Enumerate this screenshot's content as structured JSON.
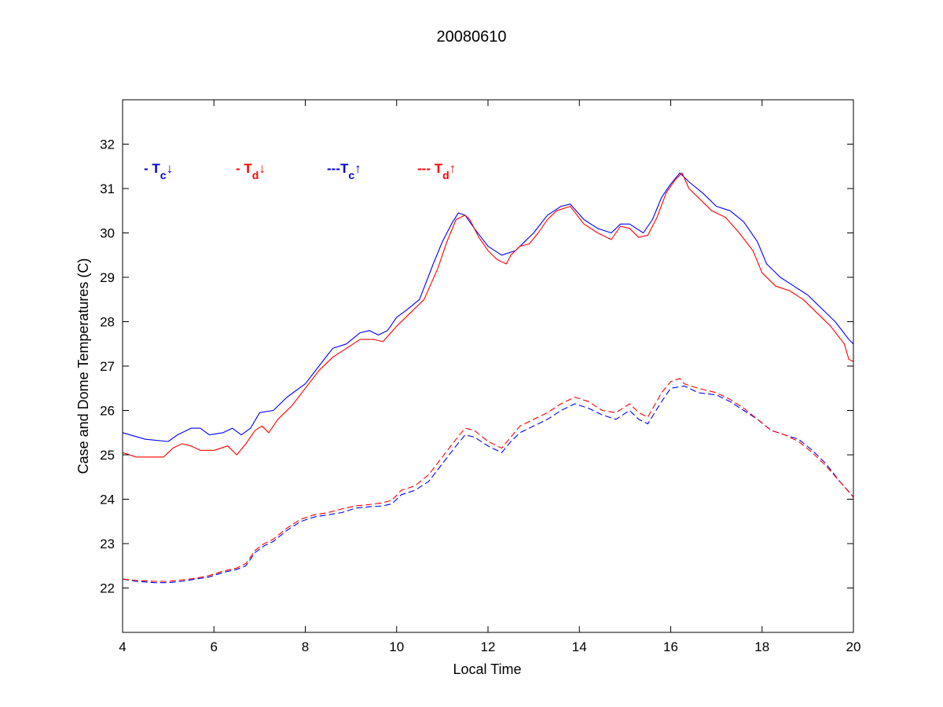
{
  "chart_data": {
    "type": "line",
    "title": "20080610",
    "xlabel": "Local Time",
    "ylabel": "Case and Dome Temperatures (C)",
    "xlim": [
      4,
      20
    ],
    "ylim": [
      21,
      33
    ],
    "xticks": [
      4,
      6,
      8,
      10,
      12,
      14,
      16,
      18,
      20
    ],
    "yticks": [
      22,
      23,
      24,
      25,
      26,
      27,
      28,
      29,
      30,
      31,
      32
    ],
    "grid": false,
    "legend_items": [
      {
        "dash": "- ",
        "sym": "T",
        "sub": "c",
        "arrow": "↓",
        "color": "#0000cc"
      },
      {
        "dash": "- ",
        "sym": "T",
        "sub": "d",
        "arrow": "↓",
        "color": "#ff0000"
      },
      {
        "dash": "---",
        "sym": "T",
        "sub": "c",
        "arrow": "↑",
        "color": "#0000cc"
      },
      {
        "dash": "--- ",
        "sym": "T",
        "sub": "d",
        "arrow": "↑",
        "color": "#ff0000"
      }
    ],
    "series": [
      {
        "style": "solid",
        "color": "#0000ff",
        "x": [
          4.0,
          4.5,
          5.0,
          5.2,
          5.5,
          5.7,
          5.9,
          6.2,
          6.4,
          6.6,
          6.8,
          7.0,
          7.3,
          7.6,
          8.0,
          8.3,
          8.6,
          8.9,
          9.2,
          9.4,
          9.6,
          9.8,
          10.0,
          10.2,
          10.5,
          10.8,
          11.0,
          11.2,
          11.35,
          11.5,
          11.7,
          12.0,
          12.3,
          12.6,
          12.8,
          13.0,
          13.3,
          13.6,
          13.8,
          14.1,
          14.4,
          14.7,
          14.9,
          15.1,
          15.4,
          15.6,
          15.8,
          16.0,
          16.2,
          16.4,
          16.7,
          17.0,
          17.3,
          17.6,
          17.9,
          18.1,
          18.4,
          18.7,
          19.0,
          19.3,
          19.6,
          19.9,
          20.0
        ],
        "y": [
          25.5,
          25.35,
          25.3,
          25.45,
          25.6,
          25.6,
          25.45,
          25.5,
          25.6,
          25.45,
          25.6,
          25.95,
          26.0,
          26.3,
          26.6,
          27.0,
          27.4,
          27.5,
          27.75,
          27.8,
          27.7,
          27.8,
          28.1,
          28.25,
          28.5,
          29.3,
          29.8,
          30.2,
          30.45,
          30.4,
          30.1,
          29.7,
          29.5,
          29.6,
          29.8,
          30.0,
          30.4,
          30.6,
          30.65,
          30.3,
          30.1,
          30.0,
          30.2,
          30.2,
          30.0,
          30.3,
          30.8,
          31.1,
          31.35,
          31.15,
          30.9,
          30.6,
          30.5,
          30.25,
          29.8,
          29.3,
          29.0,
          28.8,
          28.6,
          28.3,
          28.0,
          27.6,
          27.5
        ]
      },
      {
        "style": "solid",
        "color": "#ff0000",
        "x": [
          4.0,
          4.3,
          4.9,
          5.1,
          5.3,
          5.5,
          5.7,
          6.0,
          6.3,
          6.5,
          6.7,
          6.9,
          7.05,
          7.2,
          7.4,
          7.7,
          8.0,
          8.3,
          8.6,
          8.9,
          9.2,
          9.5,
          9.7,
          10.0,
          10.3,
          10.6,
          10.9,
          11.1,
          11.3,
          11.5,
          11.6,
          11.8,
          12.0,
          12.2,
          12.4,
          12.5,
          12.7,
          12.9,
          13.1,
          13.3,
          13.5,
          13.8,
          14.1,
          14.4,
          14.7,
          14.9,
          15.1,
          15.3,
          15.5,
          15.7,
          15.9,
          16.1,
          16.25,
          16.4,
          16.6,
          16.9,
          17.2,
          17.5,
          17.8,
          18.0,
          18.3,
          18.6,
          18.9,
          19.2,
          19.5,
          19.8,
          19.9,
          20.0
        ],
        "y": [
          25.05,
          24.95,
          24.95,
          25.15,
          25.25,
          25.2,
          25.1,
          25.1,
          25.2,
          25.0,
          25.25,
          25.55,
          25.65,
          25.5,
          25.8,
          26.1,
          26.5,
          26.9,
          27.2,
          27.4,
          27.6,
          27.6,
          27.55,
          27.9,
          28.2,
          28.5,
          29.2,
          29.8,
          30.3,
          30.4,
          30.3,
          29.9,
          29.6,
          29.4,
          29.3,
          29.5,
          29.7,
          29.75,
          30.0,
          30.3,
          30.5,
          30.6,
          30.2,
          30.0,
          29.85,
          30.15,
          30.1,
          29.9,
          29.95,
          30.35,
          30.9,
          31.2,
          31.35,
          31.0,
          30.8,
          30.5,
          30.35,
          30.0,
          29.6,
          29.1,
          28.8,
          28.7,
          28.5,
          28.2,
          27.9,
          27.5,
          27.15,
          27.1
        ]
      },
      {
        "style": "dashed",
        "color": "#0000ff",
        "x": [
          4.0,
          4.3,
          4.7,
          5.0,
          5.3,
          5.6,
          5.9,
          6.2,
          6.5,
          6.7,
          6.9,
          7.1,
          7.3,
          7.6,
          7.9,
          8.2,
          8.5,
          8.8,
          9.1,
          9.4,
          9.7,
          9.9,
          10.1,
          10.4,
          10.7,
          11.0,
          11.3,
          11.5,
          11.7,
          12.0,
          12.3,
          12.5,
          12.7,
          13.0,
          13.3,
          13.6,
          13.9,
          14.2,
          14.5,
          14.8,
          15.1,
          15.3,
          15.5,
          15.8,
          16.0,
          16.3,
          16.6,
          17.0,
          17.3,
          17.6,
          17.9,
          18.2,
          18.5,
          18.8,
          19.1,
          19.4,
          19.7,
          20.0
        ],
        "y": [
          22.2,
          22.15,
          22.12,
          22.12,
          22.15,
          22.2,
          22.25,
          22.35,
          22.42,
          22.5,
          22.8,
          22.95,
          23.05,
          23.3,
          23.5,
          23.6,
          23.65,
          23.7,
          23.8,
          23.83,
          23.85,
          23.9,
          24.1,
          24.2,
          24.4,
          24.8,
          25.2,
          25.45,
          25.4,
          25.2,
          25.05,
          25.3,
          25.5,
          25.65,
          25.8,
          26.0,
          26.15,
          26.05,
          25.9,
          25.8,
          26.0,
          25.8,
          25.7,
          26.2,
          26.5,
          26.55,
          26.4,
          26.35,
          26.2,
          26.0,
          25.8,
          25.55,
          25.45,
          25.35,
          25.1,
          24.8,
          24.4,
          24.05
        ]
      },
      {
        "style": "dashed",
        "color": "#ff0000",
        "x": [
          4.0,
          4.3,
          4.7,
          5.0,
          5.3,
          5.6,
          5.9,
          6.2,
          6.5,
          6.7,
          6.9,
          7.1,
          7.3,
          7.6,
          7.9,
          8.2,
          8.5,
          8.8,
          9.1,
          9.4,
          9.7,
          9.9,
          10.1,
          10.4,
          10.7,
          11.0,
          11.3,
          11.5,
          11.7,
          12.0,
          12.3,
          12.5,
          12.7,
          13.0,
          13.3,
          13.6,
          13.9,
          14.2,
          14.5,
          14.8,
          15.1,
          15.3,
          15.5,
          15.8,
          16.0,
          16.2,
          16.3,
          16.6,
          17.0,
          17.3,
          17.6,
          17.9,
          18.2,
          18.5,
          18.8,
          19.1,
          19.4,
          19.7,
          20.0
        ],
        "y": [
          22.2,
          22.17,
          22.15,
          22.15,
          22.18,
          22.22,
          22.28,
          22.38,
          22.45,
          22.55,
          22.85,
          23.0,
          23.1,
          23.35,
          23.55,
          23.65,
          23.7,
          23.78,
          23.85,
          23.88,
          23.92,
          23.98,
          24.2,
          24.3,
          24.55,
          24.95,
          25.35,
          25.6,
          25.55,
          25.3,
          25.15,
          25.4,
          25.65,
          25.8,
          25.95,
          26.15,
          26.3,
          26.2,
          26.0,
          25.95,
          26.15,
          25.95,
          25.85,
          26.4,
          26.65,
          26.72,
          26.6,
          26.5,
          26.4,
          26.25,
          26.05,
          25.8,
          25.55,
          25.45,
          25.3,
          25.05,
          24.75,
          24.4,
          24.05
        ]
      }
    ]
  }
}
